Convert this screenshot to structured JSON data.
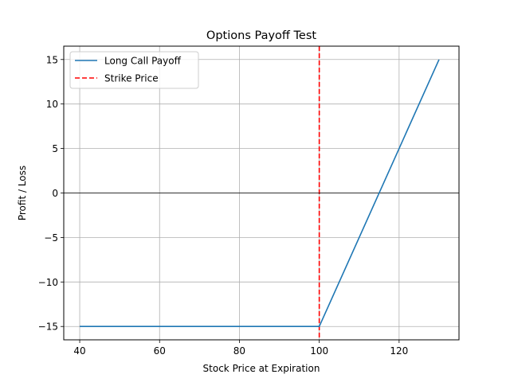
{
  "chart_data": {
    "type": "line",
    "title": "Options Payoff Test",
    "xlabel": "Stock Price at Expiration",
    "ylabel": "Profit / Loss",
    "xlim": [
      36,
      135
    ],
    "ylim": [
      -16.5,
      16.5
    ],
    "xticks": [
      40,
      60,
      80,
      100,
      120
    ],
    "yticks": [
      -15,
      -10,
      -5,
      0,
      5,
      10,
      15
    ],
    "xtick_labels": [
      "40",
      "60",
      "80",
      "100",
      "120"
    ],
    "ytick_labels": [
      "−15",
      "−10",
      "−5",
      "0",
      "5",
      "10",
      "15"
    ],
    "grid": true,
    "legend_position": "top-left",
    "series": [
      {
        "name": "Long Call Payoff",
        "style": "solid",
        "color": "#1f77b4",
        "x": [
          40,
          100,
          130
        ],
        "y": [
          -15,
          -15,
          15
        ]
      }
    ],
    "reference_lines": [
      {
        "name": "Strike Price",
        "axis": "x",
        "value": 100,
        "style": "dashed",
        "color": "#ff0000"
      },
      {
        "name": "",
        "axis": "y",
        "value": 0,
        "style": "solid",
        "color": "#000000"
      }
    ]
  }
}
